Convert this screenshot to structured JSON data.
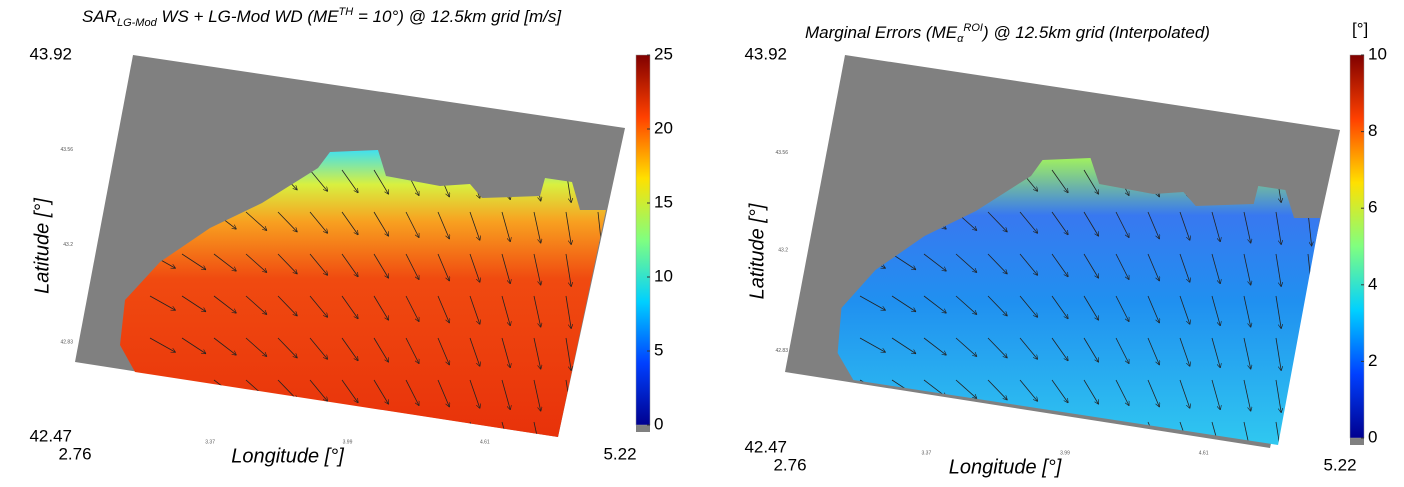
{
  "panels": [
    {
      "title": {
        "a": "SAR",
        "sub": "LG-Mod",
        "b": " WS + LG-Mod WD (ME",
        "sup": "TH",
        "c": " = 10°) @ 12.5km grid"
      },
      "unit": "[m/s]",
      "ylabel": "Latitude [°]",
      "xlabel": "Longitude [°]",
      "lat_max": 43.92,
      "lat_min": 42.47,
      "lon_min": 2.76,
      "lon_max": 5.22,
      "lat_ticks": [
        43.56,
        43.2,
        42.83
      ],
      "lon_ticks": [
        3.37,
        3.99,
        4.61
      ],
      "colorbar": {
        "lim": [
          0,
          25
        ],
        "ticks": [
          0,
          5,
          10,
          15,
          20,
          25
        ]
      }
    },
    {
      "title": {
        "a": "Marginal Errors (ME",
        "sub": "α",
        "sup": "ROI",
        "c": ") @ 12.5km grid (Interpolated)"
      },
      "unit": "[°]",
      "ylabel": "Latitude [°]",
      "xlabel": "Longitude [°]",
      "lat_max": 43.92,
      "lat_min": 42.47,
      "lon_min": 2.76,
      "lon_max": 5.22,
      "lat_ticks": [
        43.56,
        43.2,
        42.83
      ],
      "lon_ticks": [
        3.37,
        3.99,
        4.61
      ],
      "colorbar": {
        "lim": [
          0,
          10
        ],
        "ticks": [
          0,
          2,
          4,
          6,
          8,
          10
        ]
      }
    }
  ],
  "colormap": [
    "#00008f",
    "#0040ff",
    "#00d0ff",
    "#80ff80",
    "#ffe000",
    "#ff4000",
    "#800000"
  ]
}
